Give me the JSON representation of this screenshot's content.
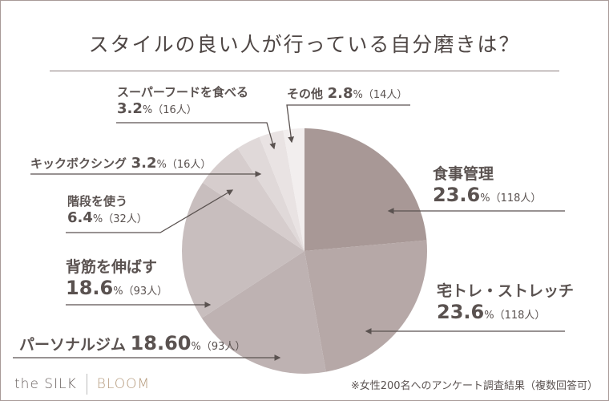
{
  "chart_data": {
    "type": "pie",
    "title": "スタイルの良い人が行っている自分磨きは？",
    "unit_label": "人",
    "slices": [
      {
        "label": "食事管理",
        "percent_text": "23.6",
        "count": 118,
        "value": 23.6,
        "color": "#a89896"
      },
      {
        "label": "宅トレ・ストレッチ",
        "percent_text": "23.6",
        "count": 118,
        "value": 23.6,
        "color": "#b6a8a7"
      },
      {
        "label": "パーソナルジム",
        "percent_text": "18.60",
        "count": 93,
        "value": 18.6,
        "color": "#beb2b2"
      },
      {
        "label": "背筋を伸ばす",
        "percent_text": "18.6",
        "count": 93,
        "value": 18.6,
        "color": "#c8bebe"
      },
      {
        "label": "階段を使う",
        "percent_text": "6.4",
        "count": 32,
        "value": 6.4,
        "color": "#d6cdcd"
      },
      {
        "label": "キックボクシング",
        "percent_text": "3.2",
        "count": 16,
        "value": 3.2,
        "color": "#e0d9d9"
      },
      {
        "label": "スーパーフードを食べる",
        "percent_text": "3.2",
        "count": 16,
        "value": 3.2,
        "color": "#e9e3e3"
      },
      {
        "label": "その他",
        "percent_text": "2.8",
        "count": 14,
        "value": 2.8,
        "color": "#f2eeee"
      }
    ]
  },
  "labels": {
    "s0_pct": "23.6",
    "s0_cnt": "%（118人）",
    "s1_pct": "23.6",
    "s1_cnt": "%（118人）",
    "s2_pct": "18.60",
    "s2_cnt": "%（93人）",
    "s3_pct": "18.6",
    "s3_cnt": "%（93人）",
    "s4_pct": "6.4",
    "s4_cnt": "%（32人）",
    "s5_pct": "3.2",
    "s5_cnt": "%（16人）",
    "s6_pct": "3.2",
    "s6_cnt": "%（16人）",
    "s7_pct": "2.8",
    "s7_cnt": "%（14人）"
  },
  "brand": {
    "part1": "the SILK",
    "part2": "BLOOM"
  },
  "footnote": "※女性200名へのアンケート調査結果（複数回答可）"
}
